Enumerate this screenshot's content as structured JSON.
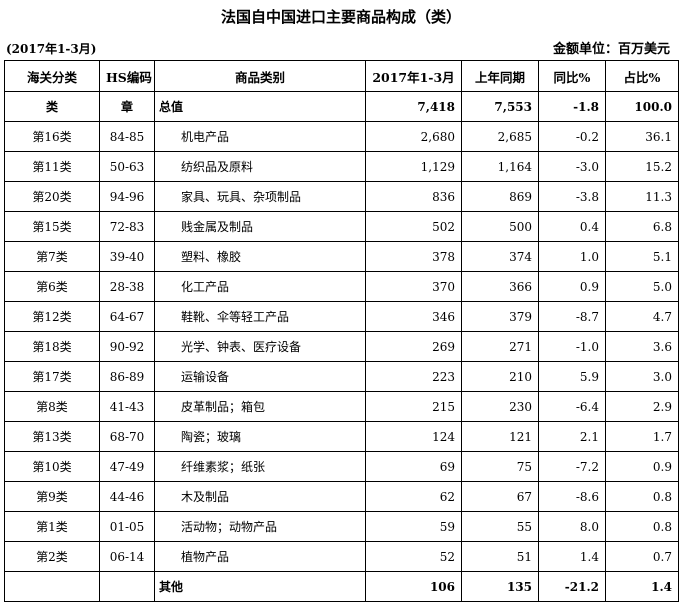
{
  "title": "法国自中国进口主要商品构成（类）",
  "period": "(2017年1-3月)",
  "unit": "金额单位：百万美元",
  "headers": [
    "海关分类",
    "HS编码",
    "商品类别",
    "2017年1-3月",
    "上年同期",
    "同比%",
    "占比%"
  ],
  "total_row": {
    "class": "类",
    "hs": "章",
    "name": "总值",
    "current": "7,418",
    "previous": "7,553",
    "yoy": "-1.8",
    "share": "100.0"
  },
  "rows": [
    {
      "class": "第16类",
      "hs": "84-85",
      "name": "机电产品",
      "current": "2,680",
      "previous": "2,685",
      "yoy": "-0.2",
      "share": "36.1"
    },
    {
      "class": "第11类",
      "hs": "50-63",
      "name": "纺织品及原料",
      "current": "1,129",
      "previous": "1,164",
      "yoy": "-3.0",
      "share": "15.2"
    },
    {
      "class": "第20类",
      "hs": "94-96",
      "name": "家具、玩具、杂项制品",
      "current": "836",
      "previous": "869",
      "yoy": "-3.8",
      "share": "11.3"
    },
    {
      "class": "第15类",
      "hs": "72-83",
      "name": "贱金属及制品",
      "current": "502",
      "previous": "500",
      "yoy": "0.4",
      "share": "6.8"
    },
    {
      "class": "第7类",
      "hs": "39-40",
      "name": "塑料、橡胶",
      "current": "378",
      "previous": "374",
      "yoy": "1.0",
      "share": "5.1"
    },
    {
      "class": "第6类",
      "hs": "28-38",
      "name": "化工产品",
      "current": "370",
      "previous": "366",
      "yoy": "0.9",
      "share": "5.0"
    },
    {
      "class": "第12类",
      "hs": "64-67",
      "name": "鞋靴、伞等轻工产品",
      "current": "346",
      "previous": "379",
      "yoy": "-8.7",
      "share": "4.7"
    },
    {
      "class": "第18类",
      "hs": "90-92",
      "name": "光学、钟表、医疗设备",
      "current": "269",
      "previous": "271",
      "yoy": "-1.0",
      "share": "3.6"
    },
    {
      "class": "第17类",
      "hs": "86-89",
      "name": "运输设备",
      "current": "223",
      "previous": "210",
      "yoy": "5.9",
      "share": "3.0"
    },
    {
      "class": "第8类",
      "hs": "41-43",
      "name": "皮革制品；箱包",
      "current": "215",
      "previous": "230",
      "yoy": "-6.4",
      "share": "2.9"
    },
    {
      "class": "第13类",
      "hs": "68-70",
      "name": "陶瓷；玻璃",
      "current": "124",
      "previous": "121",
      "yoy": "2.1",
      "share": "1.7"
    },
    {
      "class": "第10类",
      "hs": "47-49",
      "name": "纤维素浆；纸张",
      "current": "69",
      "previous": "75",
      "yoy": "-7.2",
      "share": "0.9"
    },
    {
      "class": "第9类",
      "hs": "44-46",
      "name": "木及制品",
      "current": "62",
      "previous": "67",
      "yoy": "-8.6",
      "share": "0.8"
    },
    {
      "class": "第1类",
      "hs": "01-05",
      "name": "活动物；动物产品",
      "current": "59",
      "previous": "55",
      "yoy": "8.0",
      "share": "0.8"
    },
    {
      "class": "第2类",
      "hs": "06-14",
      "name": "植物产品",
      "current": "52",
      "previous": "51",
      "yoy": "1.4",
      "share": "0.7"
    }
  ],
  "other_row": {
    "class": "",
    "hs": "",
    "name": "其他",
    "current": "106",
    "previous": "135",
    "yoy": "-21.2",
    "share": "1.4"
  }
}
